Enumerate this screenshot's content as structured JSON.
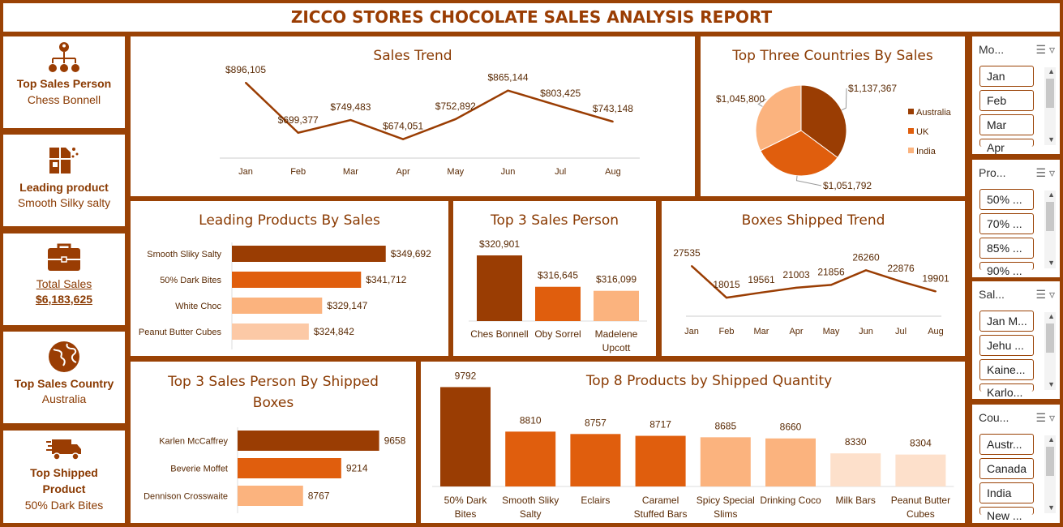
{
  "report_title": "ZICCO STORES CHOCOLATE SALES ANALYSIS REPORT",
  "kpis": {
    "top_sales_person": {
      "label": "Top Sales Person",
      "value": "Chess Bonnell",
      "icon": "org-chart-icon"
    },
    "leading_product": {
      "label": "Leading product",
      "value": "Smooth Silky salty",
      "icon": "chocolate-bar-icon"
    },
    "total_sales": {
      "label": "Total Sales",
      "value": "$6,183,625",
      "icon": "briefcase-icon"
    },
    "top_sales_country": {
      "label": "Top Sales Country",
      "value": "Australia",
      "icon": "globe-icon"
    },
    "top_shipped_product": {
      "label": "Top Shipped Product",
      "value": "50% Dark Bites",
      "icon": "truck-icon"
    }
  },
  "colors": {
    "dark": "#9a3d03",
    "mid": "#e05e0d",
    "light": "#fbb37e",
    "lighter": "#fcc9a6",
    "lightest": "#fde0cb",
    "border": "#9a4205"
  },
  "slicers": [
    {
      "header": "Mo...",
      "items": [
        "Jan",
        "Feb",
        "Mar",
        "Apr"
      ]
    },
    {
      "header": "Pro...",
      "items": [
        "50% ...",
        "70% ...",
        "85% ...",
        "90% ..."
      ]
    },
    {
      "header": "Sal...",
      "items": [
        "Jan M...",
        "Jehu ...",
        "Kaine...",
        "Karlo..."
      ]
    },
    {
      "header": "Cou...",
      "items": [
        "Austr...",
        "Canada",
        "India",
        "New ..."
      ]
    }
  ],
  "chart_data": [
    {
      "id": "sales_trend",
      "type": "line",
      "title": "Sales Trend",
      "categories": [
        "Jan",
        "Feb",
        "Mar",
        "Apr",
        "May",
        "Jun",
        "Jul",
        "Aug"
      ],
      "values": [
        896105,
        699377,
        749483,
        674051,
        752892,
        865144,
        803425,
        743148
      ],
      "labels": [
        "$896,105",
        "$699,377",
        "$749,483",
        "$674,051",
        "$752,892",
        "$865,144",
        "$803,425",
        "$743,148"
      ],
      "ylim": [
        0,
        1000000
      ]
    },
    {
      "id": "top_countries",
      "type": "pie",
      "title": "Top Three Countries By Sales",
      "categories": [
        "Australia",
        "UK",
        "India"
      ],
      "values": [
        1137367,
        1051792,
        1045800
      ],
      "labels": [
        "$1,137,367",
        "$1,051,792",
        "$1,045,800"
      ],
      "legend": "right"
    },
    {
      "id": "leading_products",
      "type": "bar",
      "orientation": "horizontal",
      "title": "Leading Products By Sales",
      "categories": [
        "Smooth Sliky Salty",
        "50% Dark Bites",
        "White Choc",
        "Peanut Butter Cubes"
      ],
      "values": [
        349692,
        341712,
        329147,
        324842
      ],
      "labels": [
        "$349,692",
        "$341,712",
        "$329,147",
        "$324,842"
      ],
      "xlim": [
        300000,
        355000
      ]
    },
    {
      "id": "top3_sales_person",
      "type": "bar",
      "title": "Top 3 Sales Person",
      "categories": [
        "Ches Bonnell",
        "Oby Sorrel",
        "Madelene Upcott"
      ],
      "values": [
        320901,
        316645,
        316099
      ],
      "labels": [
        "$320,901",
        "$316,645",
        "$316,099"
      ],
      "ylim": [
        312000,
        322000
      ]
    },
    {
      "id": "boxes_shipped_trend",
      "type": "line",
      "title": "Boxes Shipped Trend",
      "categories": [
        "Jan",
        "Feb",
        "Mar",
        "Apr",
        "May",
        "Jun",
        "Jul",
        "Aug"
      ],
      "values": [
        27535,
        18015,
        19561,
        21003,
        21856,
        26260,
        22876,
        19901
      ],
      "labels": [
        "27535",
        "18015",
        "19561",
        "21003",
        "21856",
        "26260",
        "22876",
        "19901"
      ],
      "ylim": [
        0,
        30000
      ]
    },
    {
      "id": "top3_by_boxes",
      "type": "bar",
      "orientation": "horizontal",
      "title": "Top 3 Sales Person By Shipped Boxes",
      "categories": [
        "Karlen McCaffrey",
        "Beverie Moffet",
        "Dennison Crosswaite"
      ],
      "values": [
        9658,
        9214,
        8767
      ],
      "labels": [
        "9658",
        "9214",
        "8767"
      ],
      "xlim": [
        8000,
        9700
      ]
    },
    {
      "id": "top8_products_shipped",
      "type": "bar",
      "title": "Top 8 Products by Shipped Quantity",
      "categories": [
        "50% Dark Bites",
        "Smooth Sliky Salty",
        "Eclairs",
        "Caramel Stuffed Bars",
        "Spicy Special Slims",
        "Drinking Coco",
        "Milk Bars",
        "Peanut Butter Cubes"
      ],
      "values": [
        9792,
        8810,
        8757,
        8717,
        8685,
        8660,
        8330,
        8304
      ],
      "labels": [
        "9792",
        "8810",
        "8757",
        "8717",
        "8685",
        "8660",
        "8330",
        "8304"
      ],
      "ylim": [
        7600,
        9800
      ]
    }
  ]
}
